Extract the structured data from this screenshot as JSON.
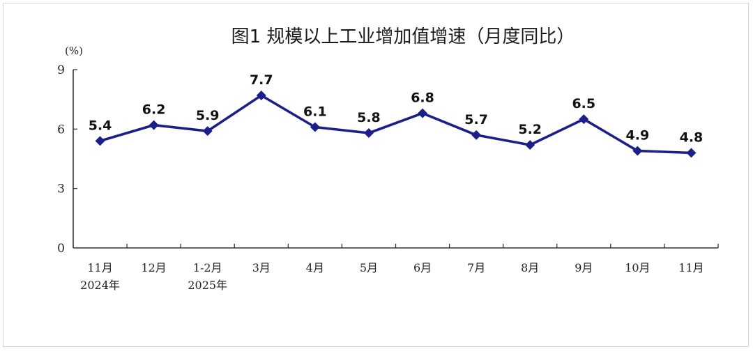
{
  "chart_data": {
    "type": "line",
    "title": "图1    规模以上工业增加值增速（月度同比）",
    "ylabel": "(%)",
    "xlabel": "",
    "ylim": [
      0,
      9
    ],
    "yticks": [
      "0",
      "3",
      "6",
      "9"
    ],
    "categories": [
      "11月\n2024年",
      "12月",
      "1-2月\n2025年",
      "3月",
      "4月",
      "5月",
      "6月",
      "7月",
      "8月",
      "9月",
      "10月",
      "11月"
    ],
    "series": [
      {
        "values": [
          5.4,
          6.2,
          5.9,
          7.7,
          6.1,
          5.8,
          6.8,
          5.7,
          5.2,
          6.5,
          4.9,
          4.8
        ],
        "labels": [
          "5.4",
          "6.2",
          "5.9",
          "7.7",
          "6.1",
          "5.8",
          "6.8",
          "5.7",
          "5.2",
          "6.5",
          "4.9",
          "4.8"
        ],
        "color": "#1c1f8a",
        "marker": "diamond"
      }
    ],
    "grid": false,
    "legend": "none"
  }
}
